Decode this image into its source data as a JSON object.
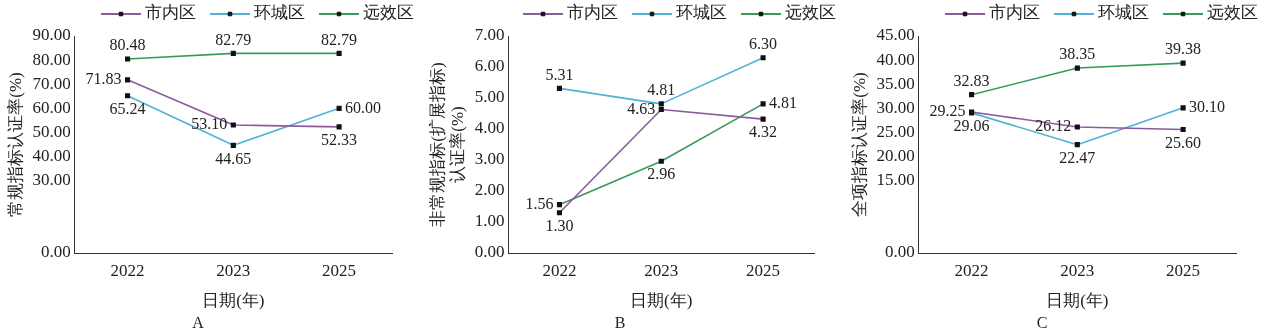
{
  "chart_data": [
    {
      "type": "line",
      "title": "A",
      "xlabel": "日期(年)",
      "ylabel": "常规指标认证率(%)",
      "categories": [
        "2022",
        "2023",
        "2025"
      ],
      "legend": "top",
      "marker": "square",
      "grid": false,
      "ylim": [
        0,
        90
      ],
      "yticks": [
        {
          "value": 0,
          "label": "0.00"
        },
        {
          "value": 30,
          "label": "30.00"
        },
        {
          "value": 40,
          "label": "40.00"
        },
        {
          "value": 50,
          "label": "50.00"
        },
        {
          "value": 60,
          "label": "60.00"
        },
        {
          "value": 70,
          "label": "70.00"
        },
        {
          "value": 80,
          "label": "80.00"
        },
        {
          "value": 90,
          "label": "90.00"
        }
      ],
      "series": [
        {
          "name": "市内区",
          "color": "#8e5a9e",
          "values": [
            71.83,
            53.1,
            52.33
          ],
          "value_labels": [
            "71.83",
            "53.10",
            "52.33"
          ]
        },
        {
          "name": "环城区",
          "color": "#4fb3d3",
          "values": [
            65.24,
            44.65,
            60.0
          ],
          "value_labels": [
            "65.24",
            "44.65",
            "60.00"
          ]
        },
        {
          "name": "远效区",
          "color": "#3a9a5a",
          "values": [
            80.48,
            82.79,
            82.79
          ],
          "value_labels": [
            "80.48",
            "82.79",
            "82.79"
          ]
        }
      ]
    },
    {
      "type": "line",
      "title": "B",
      "xlabel": "日期(年)",
      "ylabel": "非常规指标(扩展指标)\n认证率(%)",
      "categories": [
        "2022",
        "2023",
        "2025"
      ],
      "legend": "top",
      "marker": "square",
      "grid": false,
      "ylim": [
        0,
        7
      ],
      "yticks": [
        {
          "value": 0,
          "label": "0.00"
        },
        {
          "value": 1,
          "label": "1.00"
        },
        {
          "value": 2,
          "label": "2.00"
        },
        {
          "value": 3,
          "label": "3.00"
        },
        {
          "value": 4,
          "label": "4.00"
        },
        {
          "value": 5,
          "label": "5.00"
        },
        {
          "value": 6,
          "label": "6.00"
        },
        {
          "value": 7,
          "label": "7.00"
        }
      ],
      "series": [
        {
          "name": "市内区",
          "color": "#8e5a9e",
          "values": [
            1.3,
            4.63,
            4.32
          ],
          "value_labels": [
            "1.30",
            "4.63",
            "4.32"
          ]
        },
        {
          "name": "环城区",
          "color": "#4fb3d3",
          "values": [
            5.31,
            4.81,
            6.3
          ],
          "value_labels": [
            "5.31",
            "4.81",
            "6.30"
          ]
        },
        {
          "name": "远效区",
          "color": "#3a9a5a",
          "values": [
            1.56,
            2.96,
            4.81
          ],
          "value_labels": [
            "1.56",
            "2.96",
            "4.81"
          ]
        }
      ]
    },
    {
      "type": "line",
      "title": "C",
      "xlabel": "日期(年)",
      "ylabel": "全项指标认证率(%)",
      "categories": [
        "2022",
        "2023",
        "2025"
      ],
      "legend": "top",
      "marker": "square",
      "grid": false,
      "ylim": [
        0,
        45
      ],
      "yticks": [
        {
          "value": 0,
          "label": "0.00"
        },
        {
          "value": 15,
          "label": "15.00"
        },
        {
          "value": 20,
          "label": "20.00"
        },
        {
          "value": 25,
          "label": "25.00"
        },
        {
          "value": 30,
          "label": "30.00"
        },
        {
          "value": 35,
          "label": "35.00"
        },
        {
          "value": 40,
          "label": "40.00"
        },
        {
          "value": 45,
          "label": "45.00"
        }
      ],
      "series": [
        {
          "name": "市内区",
          "color": "#8e5a9e",
          "values": [
            29.25,
            26.12,
            25.6
          ],
          "value_labels": [
            "29.25",
            "26.12",
            "25.60"
          ]
        },
        {
          "name": "环城区",
          "color": "#4fb3d3",
          "values": [
            29.06,
            22.47,
            30.1
          ],
          "value_labels": [
            "29.06",
            "22.47",
            "30.10"
          ]
        },
        {
          "name": "远效区",
          "color": "#3a9a5a",
          "values": [
            32.83,
            38.35,
            39.38
          ],
          "value_labels": [
            "32.83",
            "38.35",
            "39.38"
          ]
        }
      ]
    }
  ]
}
